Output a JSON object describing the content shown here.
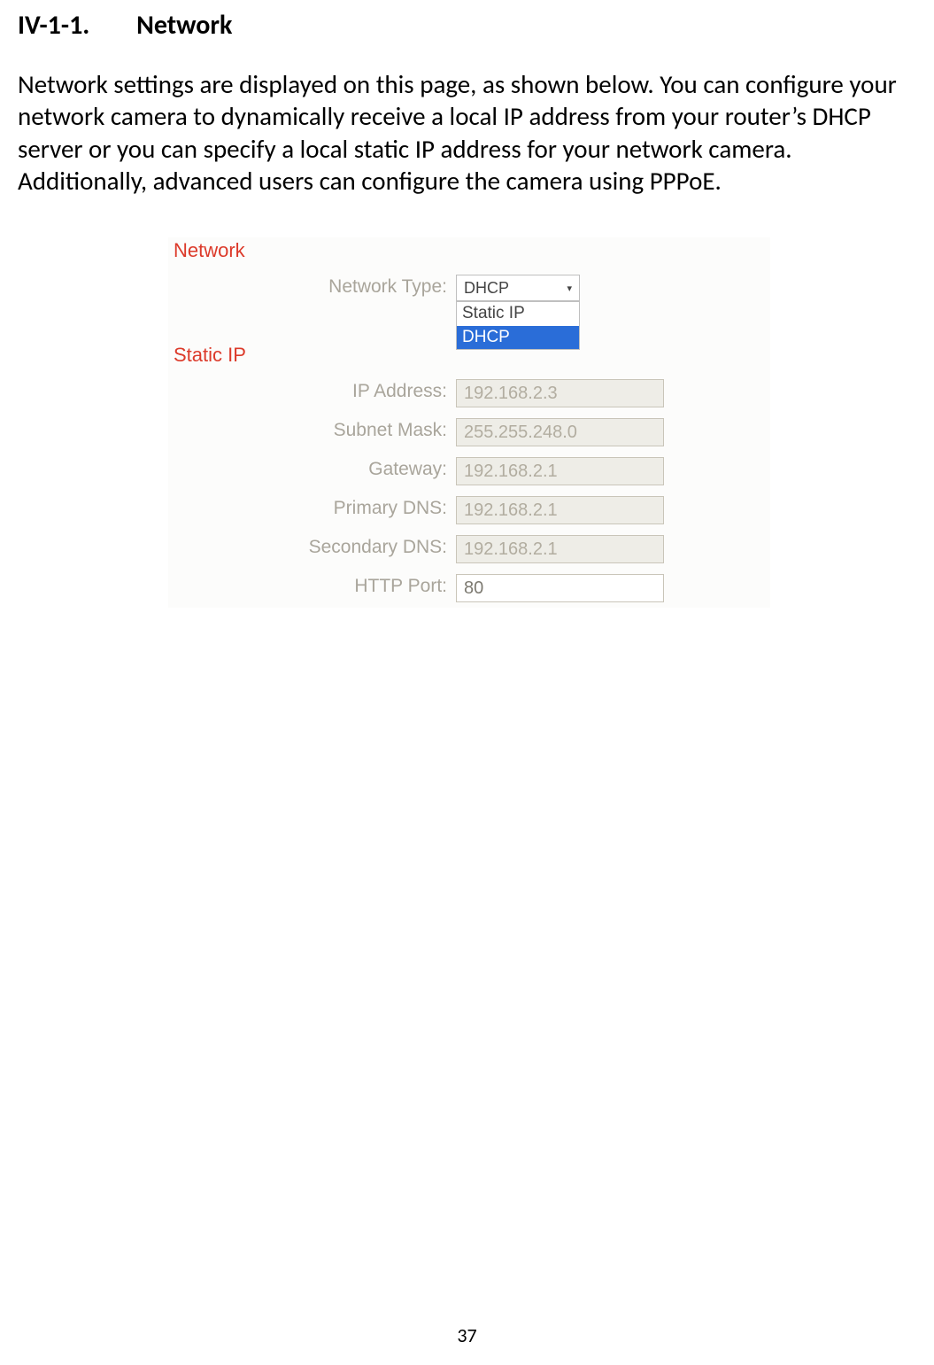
{
  "heading": {
    "number": "IV-1-1.",
    "title": "Network"
  },
  "paragraph": "Network settings are displayed on this page, as shown below. You can configure your network camera to dynamically receive a local IP address from your router’s DHCP server or you can specify a local static IP address for your network camera. Additionally, advanced users can configure the camera using PPPoE.",
  "panel": {
    "section_network": {
      "heading": "Network",
      "network_type_label": "Network Type:"
    },
    "select": {
      "selected": "DHCP",
      "options": [
        "Static IP",
        "DHCP"
      ],
      "selected_index": 1
    },
    "section_static": {
      "heading": "Static IP",
      "rows": [
        {
          "label": "IP Address:",
          "value": "192.168.2.3",
          "enabled": false
        },
        {
          "label": "Subnet Mask:",
          "value": "255.255.248.0",
          "enabled": false
        },
        {
          "label": "Gateway:",
          "value": "192.168.2.1",
          "enabled": false
        },
        {
          "label": "Primary DNS:",
          "value": "192.168.2.1",
          "enabled": false
        },
        {
          "label": "Secondary DNS:",
          "value": "192.168.2.1",
          "enabled": false
        },
        {
          "label": "HTTP Port:",
          "value": "80",
          "enabled": true
        }
      ]
    }
  },
  "page_number": "37",
  "colors": {
    "heading_red": "#dc3a2a",
    "label_gray": "#a9a59b",
    "input_disabled_bg": "#eeede7",
    "input_disabled_text": "#b2ada0",
    "select_highlight": "#2a6dd8"
  }
}
